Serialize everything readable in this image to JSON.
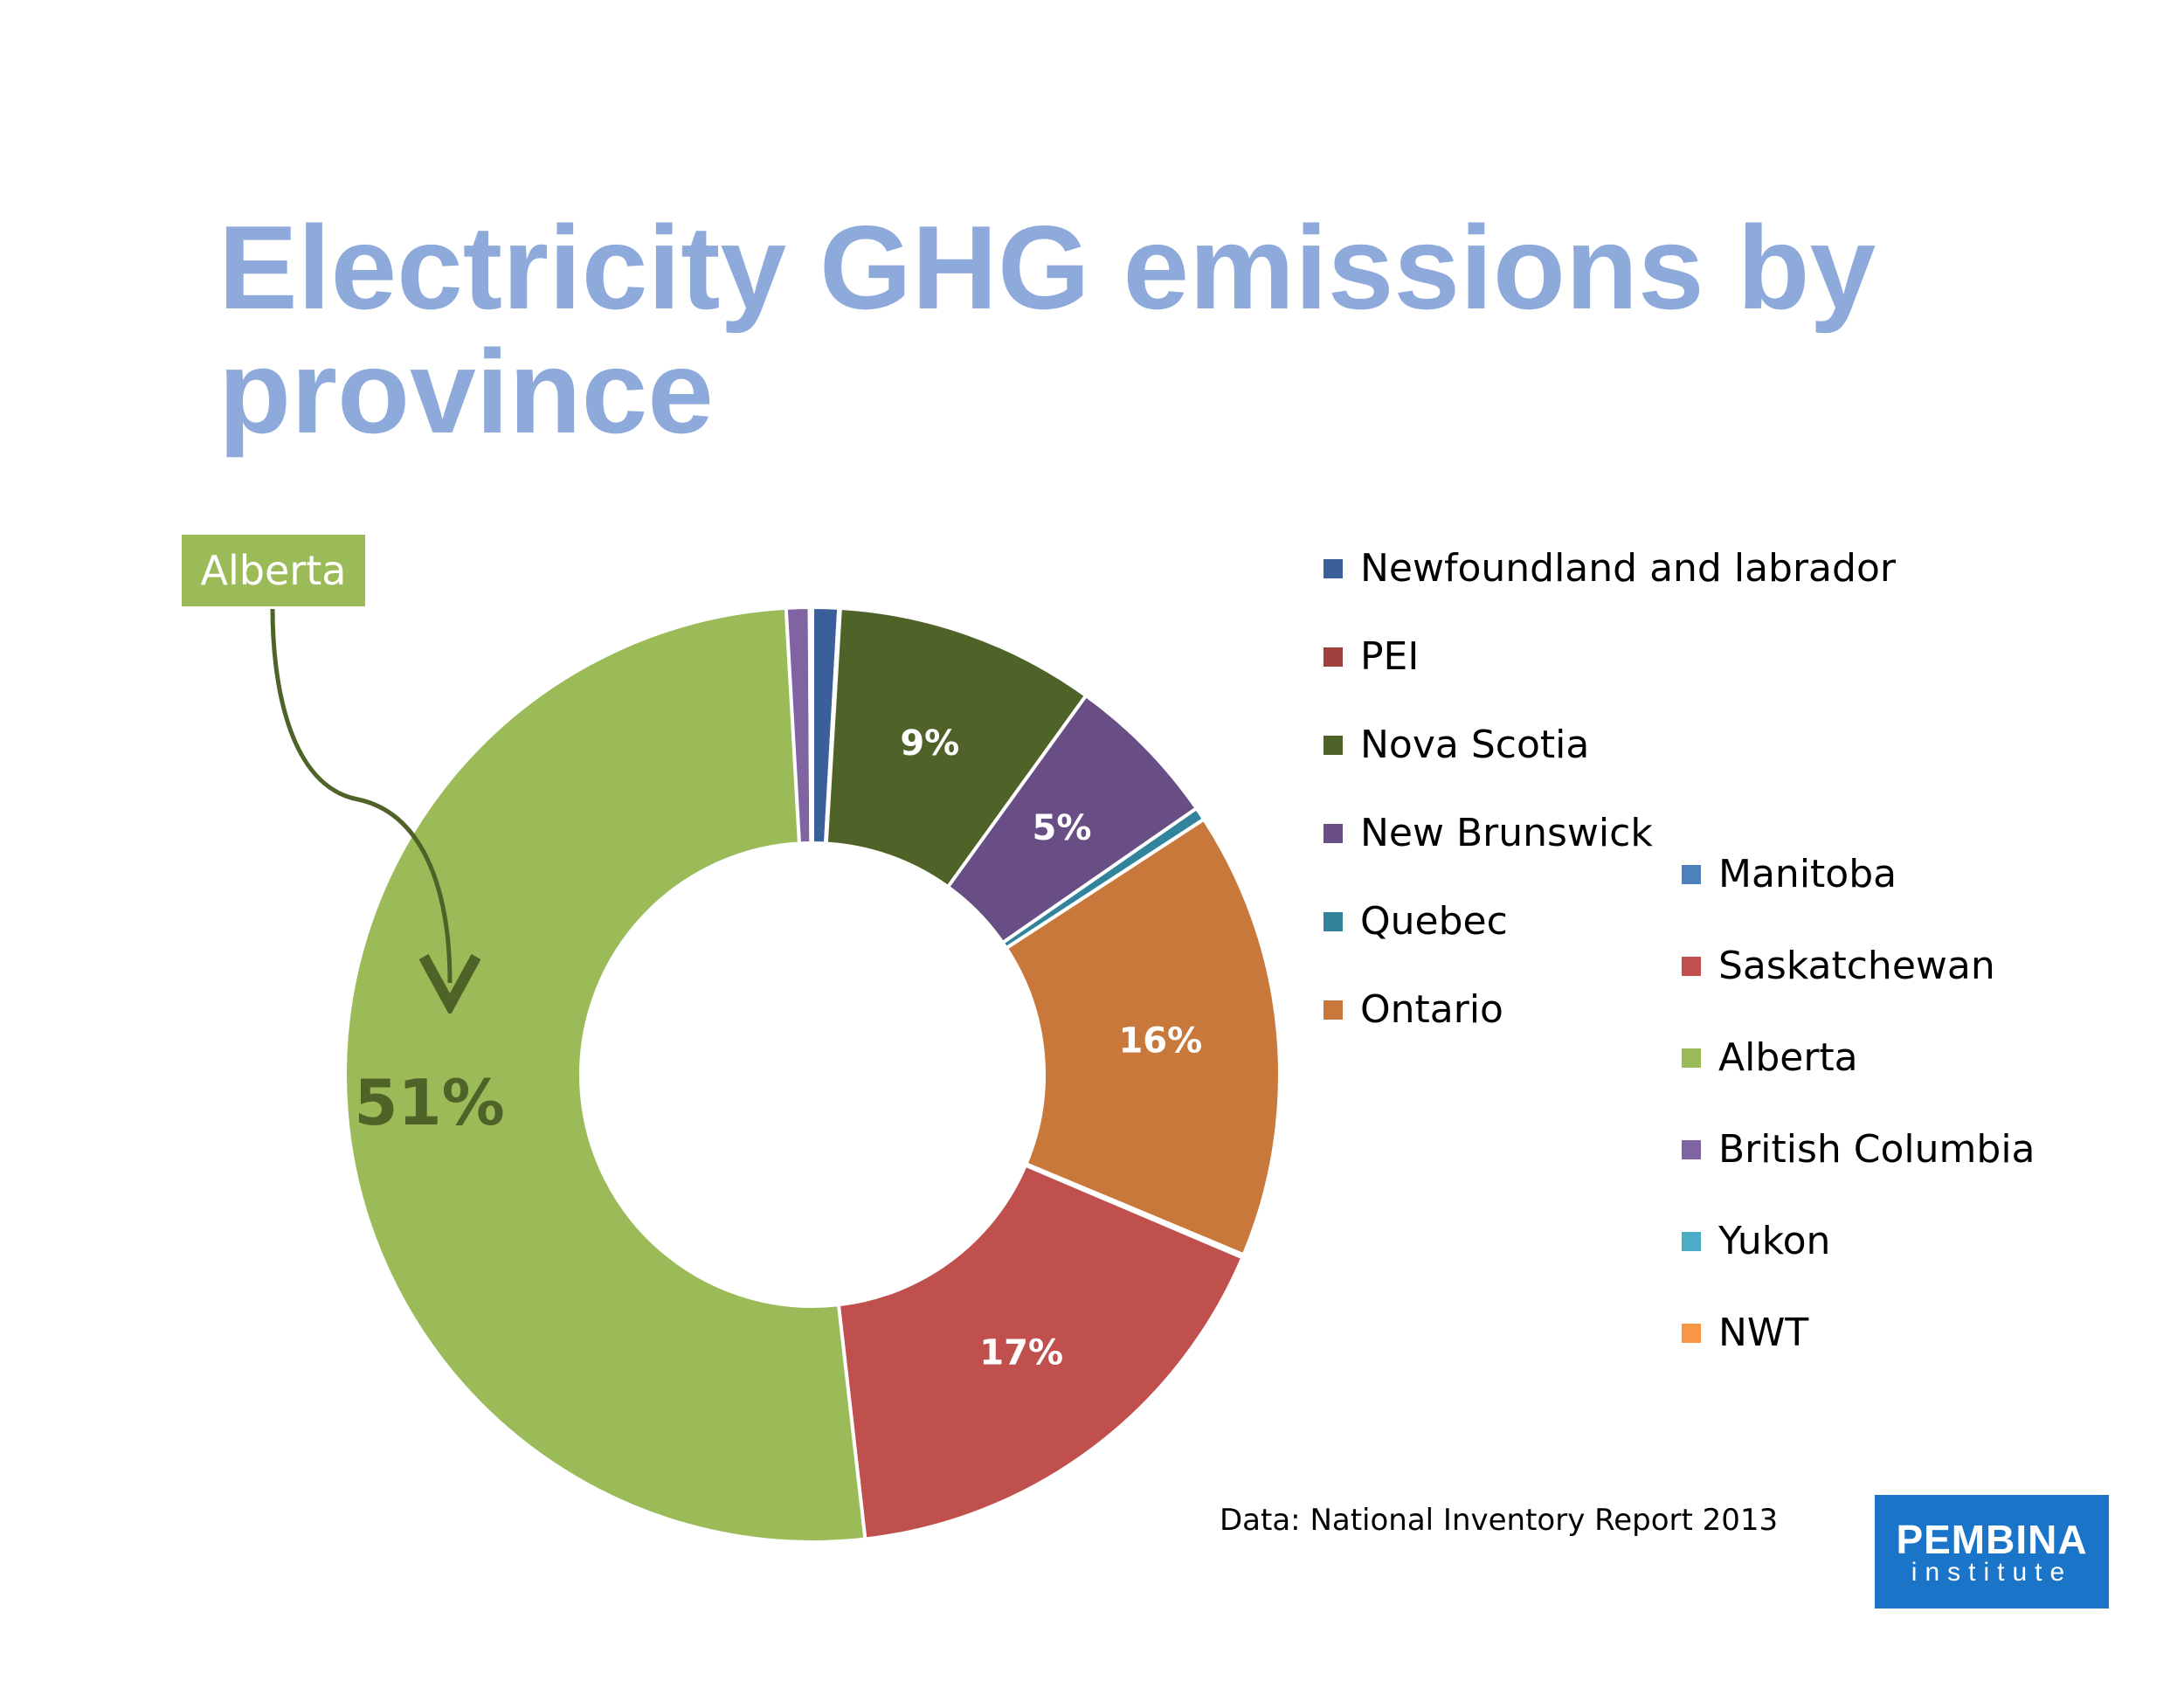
{
  "title": "Electricity GHG emissions by province",
  "callout": {
    "label": "Alberta",
    "color": "#9bbb59",
    "arrow_color": "#4f6228"
  },
  "source_note": "Data: National Inventory Report 2013",
  "logo": {
    "line1": "PEMBINA",
    "line2": "institute",
    "color": "#1a75c9"
  },
  "chart_data": {
    "type": "pie",
    "donut": true,
    "title": "",
    "legend_position": "right",
    "slices": [
      {
        "name": "Newfoundland and labrador",
        "value": 0.9,
        "color": "#3a5f9a",
        "label": ""
      },
      {
        "name": "PEI",
        "value": 0.05,
        "color": "#a0403d",
        "label": ""
      },
      {
        "name": "Nova Scotia",
        "value": 9,
        "color": "#4f6228",
        "label": "9%"
      },
      {
        "name": "New Brunswick",
        "value": 5.4,
        "color": "#684e84",
        "label": "5%"
      },
      {
        "name": "Quebec",
        "value": 0.45,
        "color": "#31849b",
        "label": ""
      },
      {
        "name": "Ontario",
        "value": 15.5,
        "color": "#c8783a",
        "label": "16%"
      },
      {
        "name": "Manitoba",
        "value": 0.1,
        "color": "#4f81bd",
        "label": ""
      },
      {
        "name": "Saskatchewan",
        "value": 16.8,
        "color": "#c0504d",
        "label": "17%"
      },
      {
        "name": "Alberta",
        "value": 50.9,
        "color": "#9bbb59",
        "label": "51%"
      },
      {
        "name": "British Columbia",
        "value": 0.8,
        "color": "#8064a2",
        "label": ""
      },
      {
        "name": "Yukon",
        "value": 0.05,
        "color": "#4bacc6",
        "label": ""
      },
      {
        "name": "NWT",
        "value": 0.05,
        "color": "#f79646",
        "label": ""
      }
    ]
  }
}
